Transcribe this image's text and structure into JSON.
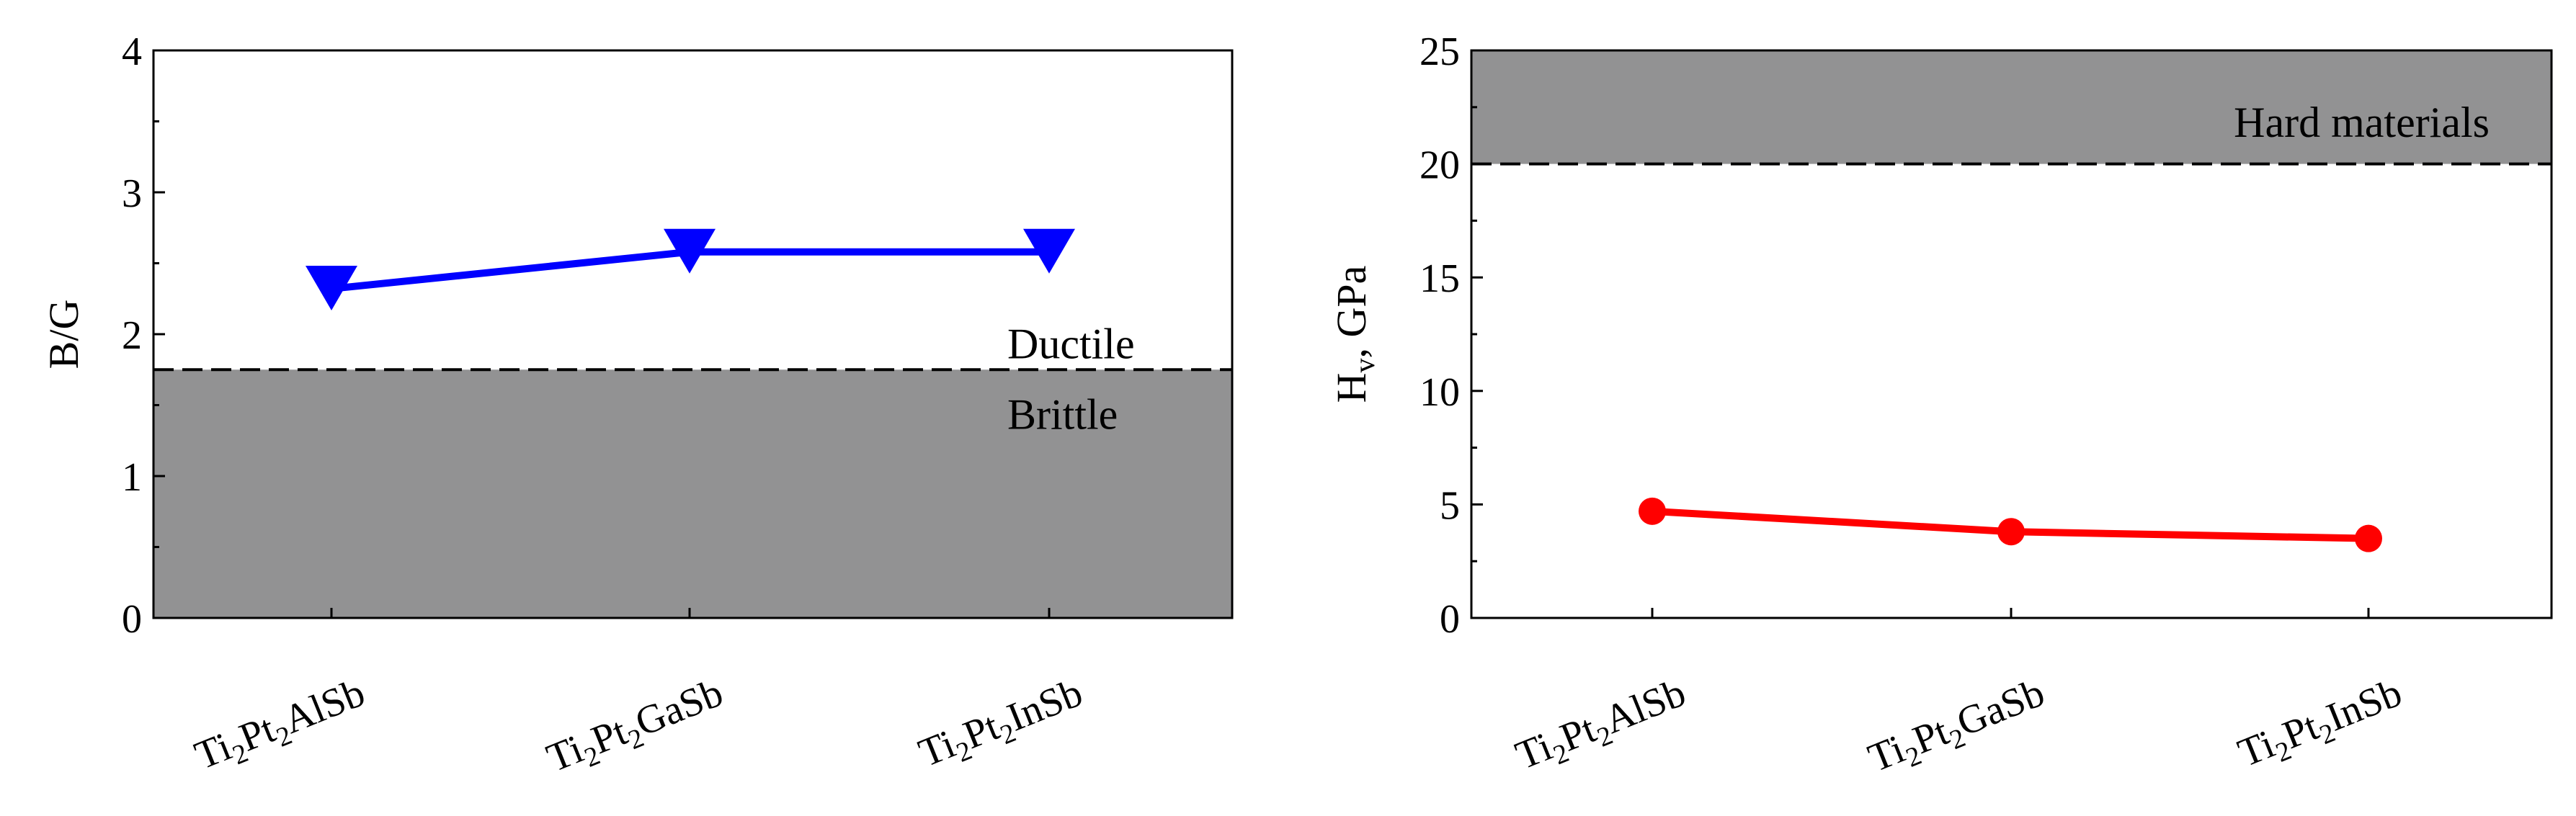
{
  "chart_data": [
    {
      "type": "line",
      "categories": [
        "Ti2Pt2AlSb",
        "Ti2Pt2GaSb",
        "Ti2Pt2InSb"
      ],
      "category_parts": [
        [
          "Ti",
          "2",
          "Pt",
          "2",
          "AlSb"
        ],
        [
          "Ti",
          "2",
          "Pt",
          "2",
          "GaSb"
        ],
        [
          "Ti",
          "2",
          "Pt",
          "2",
          "InSb"
        ]
      ],
      "series": [
        {
          "values": [
            2.32,
            2.58,
            2.58
          ],
          "color": "#0000ff",
          "marker": "triangle-down"
        }
      ],
      "ylabel": "B/G",
      "ylim": [
        0,
        4
      ],
      "yticks": [
        0,
        1,
        2,
        3,
        4
      ],
      "y_minor_step": 0.5,
      "threshold": 1.75,
      "shade": "below",
      "shade_color": "#929293",
      "annotations": [
        "Ductile",
        "Brittle"
      ],
      "grid": false
    },
    {
      "type": "line",
      "categories": [
        "Ti2Pt2AlSb",
        "Ti2Pt2GaSb",
        "Ti2Pt2InSb"
      ],
      "category_parts": [
        [
          "Ti",
          "2",
          "Pt",
          "2",
          "AlSb"
        ],
        [
          "Ti",
          "2",
          "Pt",
          "2",
          "GaSb"
        ],
        [
          "Ti",
          "2",
          "Pt",
          "2",
          "InSb"
        ]
      ],
      "series": [
        {
          "values": [
            4.7,
            3.8,
            3.5
          ],
          "color": "#ff0000",
          "marker": "circle"
        }
      ],
      "ylabel_parts": [
        "H",
        "v",
        ", GPa"
      ],
      "ylim": [
        0,
        25
      ],
      "yticks": [
        0,
        5,
        10,
        15,
        20,
        25
      ],
      "y_minor_step": 2.5,
      "threshold": 20,
      "shade": "above",
      "shade_color": "#929293",
      "annotations": [
        "Hard materials"
      ],
      "grid": false
    }
  ]
}
